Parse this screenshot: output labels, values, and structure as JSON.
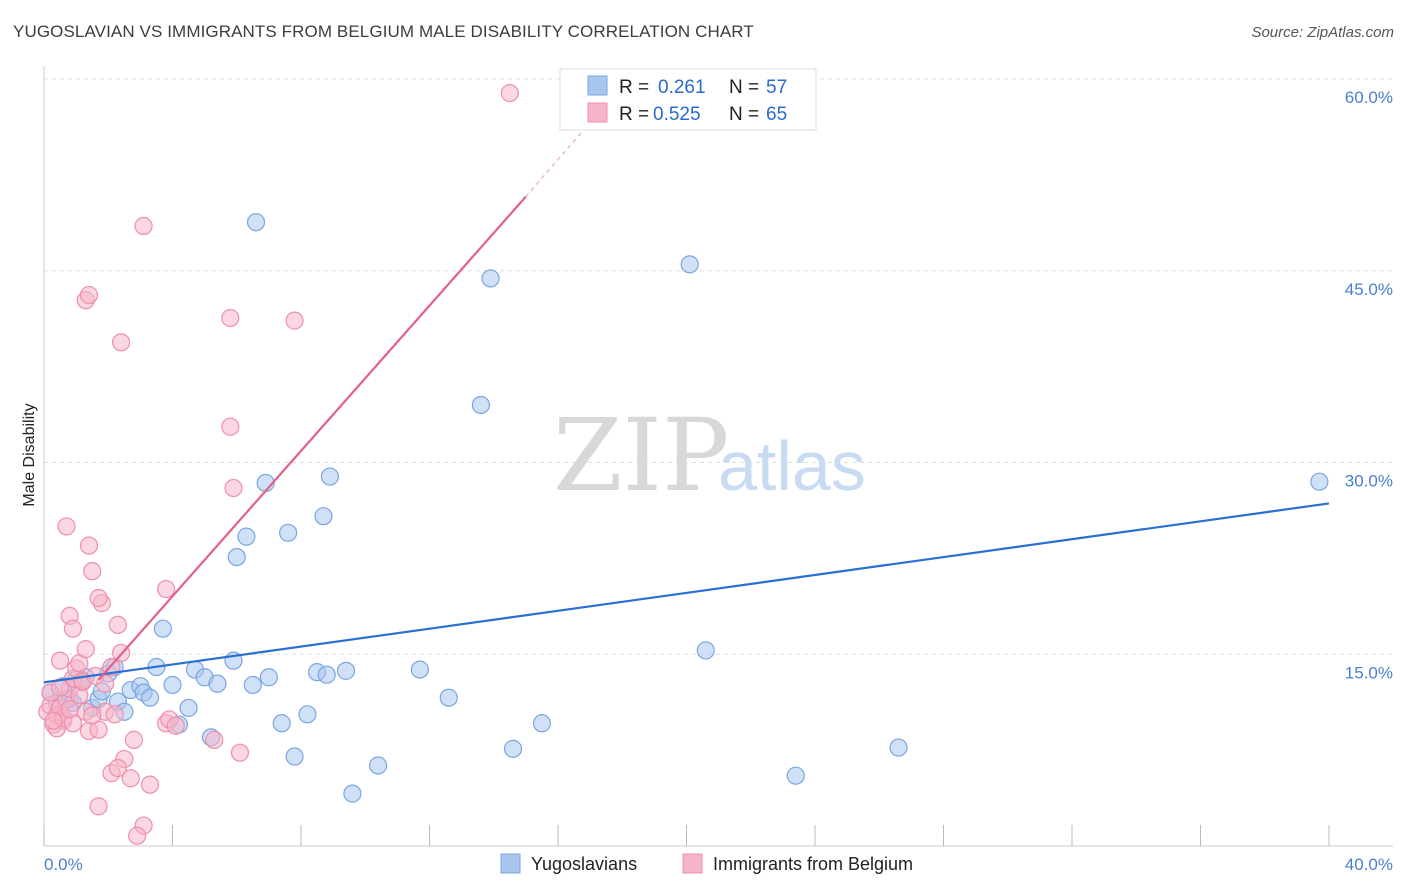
{
  "title": "YUGOSLAVIAN VS IMMIGRANTS FROM BELGIUM MALE DISABILITY CORRELATION CHART",
  "source": "Source: ZipAtlas.com",
  "watermark": {
    "zip": "ZIP",
    "atlas": "atlas"
  },
  "legend": {
    "r_label": "R =",
    "n_label": "N =",
    "rows": [
      {
        "name": "yugoslavians",
        "r": "0.261",
        "n": "57"
      },
      {
        "name": "belgium",
        "r": "0.525",
        "n": "65"
      }
    ]
  },
  "colors": {
    "blue_fill": "#a9c6ee",
    "blue_stroke": "#7aa6e0",
    "blue_line": "#2a6fd4",
    "pink_fill": "#f5b6c9",
    "pink_stroke": "#ee8fae",
    "pink_line": "#e2608c",
    "grid": "#dddddd",
    "axis_text": "#4a7fd0"
  },
  "chart_data": {
    "type": "scatter",
    "title": "YUGOSLAVIAN VS IMMIGRANTS FROM BELGIUM MALE DISABILITY CORRELATION CHART",
    "xlabel": "",
    "ylabel": "Male Disability",
    "xlim": [
      0,
      40
    ],
    "ylim": [
      0,
      60
    ],
    "x_tick_labels": [
      "0.0%",
      "40.0%"
    ],
    "y_ticks": [
      15,
      30,
      45,
      60
    ],
    "y_tick_labels": [
      "15.0%",
      "30.0%",
      "45.0%",
      "60.0%"
    ],
    "series": [
      {
        "name": "Yugoslavians",
        "color": "#a9c6ee",
        "points": [
          [
            0.2,
            12.0
          ],
          [
            0.4,
            11.2
          ],
          [
            0.6,
            12.5
          ],
          [
            0.8,
            11.5
          ],
          [
            1.0,
            13.0
          ],
          [
            1.3,
            13.2
          ],
          [
            1.5,
            10.8
          ],
          [
            1.7,
            11.5
          ],
          [
            1.8,
            12.1
          ],
          [
            2.0,
            13.5
          ],
          [
            2.3,
            11.3
          ],
          [
            2.5,
            10.5
          ],
          [
            2.7,
            12.2
          ],
          [
            3.0,
            12.5
          ],
          [
            3.1,
            12.0
          ],
          [
            3.3,
            11.6
          ],
          [
            3.5,
            14.0
          ],
          [
            3.7,
            17.0
          ],
          [
            4.0,
            12.6
          ],
          [
            4.2,
            9.5
          ],
          [
            4.5,
            10.8
          ],
          [
            4.7,
            13.8
          ],
          [
            5.0,
            13.2
          ],
          [
            5.2,
            8.5
          ],
          [
            5.4,
            12.7
          ],
          [
            5.9,
            14.5
          ],
          [
            6.0,
            22.6
          ],
          [
            6.3,
            24.2
          ],
          [
            6.5,
            12.6
          ],
          [
            6.6,
            48.8
          ],
          [
            6.9,
            28.4
          ],
          [
            7.0,
            13.2
          ],
          [
            7.4,
            9.6
          ],
          [
            7.6,
            24.5
          ],
          [
            7.8,
            7.0
          ],
          [
            8.2,
            10.3
          ],
          [
            8.5,
            13.6
          ],
          [
            8.7,
            25.8
          ],
          [
            8.8,
            13.4
          ],
          [
            8.9,
            28.9
          ],
          [
            9.4,
            13.7
          ],
          [
            9.6,
            4.1
          ],
          [
            10.4,
            6.3
          ],
          [
            11.7,
            13.8
          ],
          [
            12.6,
            11.6
          ],
          [
            13.6,
            34.5
          ],
          [
            13.9,
            44.4
          ],
          [
            14.6,
            7.6
          ],
          [
            15.5,
            9.6
          ],
          [
            20.1,
            45.5
          ],
          [
            20.6,
            15.3
          ],
          [
            23.4,
            5.5
          ],
          [
            26.6,
            7.7
          ],
          [
            39.7,
            28.5
          ],
          [
            1.2,
            12.9
          ],
          [
            2.2,
            14.0
          ],
          [
            0.9,
            11.2
          ]
        ]
      },
      {
        "name": "Immigrants from Belgium",
        "color": "#f5b6c9",
        "points": [
          [
            0.1,
            10.5
          ],
          [
            0.2,
            11.0
          ],
          [
            0.3,
            9.5
          ],
          [
            0.4,
            10.2
          ],
          [
            0.5,
            10.8
          ],
          [
            0.6,
            9.8
          ],
          [
            0.7,
            11.5
          ],
          [
            0.8,
            12.3
          ],
          [
            0.9,
            13.1
          ],
          [
            1.0,
            13.9
          ],
          [
            1.1,
            14.3
          ],
          [
            1.2,
            12.8
          ],
          [
            1.3,
            10.5
          ],
          [
            1.4,
            9.0
          ],
          [
            0.5,
            14.5
          ],
          [
            0.7,
            25.0
          ],
          [
            0.8,
            18.0
          ],
          [
            0.9,
            17.0
          ],
          [
            1.3,
            15.4
          ],
          [
            1.5,
            21.5
          ],
          [
            1.4,
            23.5
          ],
          [
            1.8,
            19.0
          ],
          [
            1.7,
            19.4
          ],
          [
            2.1,
            14.0
          ],
          [
            2.3,
            17.3
          ],
          [
            2.4,
            15.1
          ],
          [
            1.9,
            12.7
          ],
          [
            1.3,
            42.7
          ],
          [
            1.4,
            43.1
          ],
          [
            2.4,
            39.4
          ],
          [
            3.1,
            48.5
          ],
          [
            5.8,
            41.3
          ],
          [
            7.8,
            41.1
          ],
          [
            5.8,
            32.8
          ],
          [
            5.9,
            28.0
          ],
          [
            3.8,
            20.1
          ],
          [
            3.8,
            9.6
          ],
          [
            3.9,
            9.9
          ],
          [
            4.1,
            9.4
          ],
          [
            5.3,
            8.3
          ],
          [
            6.1,
            7.3
          ],
          [
            2.8,
            8.3
          ],
          [
            2.5,
            6.8
          ],
          [
            2.1,
            5.7
          ],
          [
            2.3,
            6.1
          ],
          [
            2.7,
            5.3
          ],
          [
            3.3,
            4.8
          ],
          [
            3.1,
            1.6
          ],
          [
            2.9,
            0.8
          ],
          [
            1.7,
            3.1
          ],
          [
            1.7,
            9.1
          ],
          [
            1.9,
            10.5
          ],
          [
            1.5,
            10.2
          ],
          [
            0.4,
            9.2
          ],
          [
            0.6,
            10.0
          ],
          [
            0.3,
            9.8
          ],
          [
            0.9,
            9.6
          ],
          [
            1.1,
            11.8
          ],
          [
            0.2,
            12.0
          ],
          [
            0.5,
            12.4
          ],
          [
            0.8,
            10.7
          ],
          [
            1.2,
            12.9
          ],
          [
            1.6,
            13.3
          ],
          [
            14.5,
            58.9
          ],
          [
            2.2,
            10.3
          ]
        ]
      }
    ],
    "trend_lines": [
      {
        "series": "Yugoslavians",
        "from": [
          0,
          12.8
        ],
        "to": [
          40,
          26.8
        ]
      },
      {
        "series": "Immigrants from Belgium",
        "from": [
          1.7,
          13.0
        ],
        "to": [
          15.0,
          50.8
        ],
        "dashed_to": [
          18.0,
          59.5
        ]
      }
    ],
    "bottom_legend": [
      "Yugoslavians",
      "Immigrants from Belgium"
    ]
  }
}
